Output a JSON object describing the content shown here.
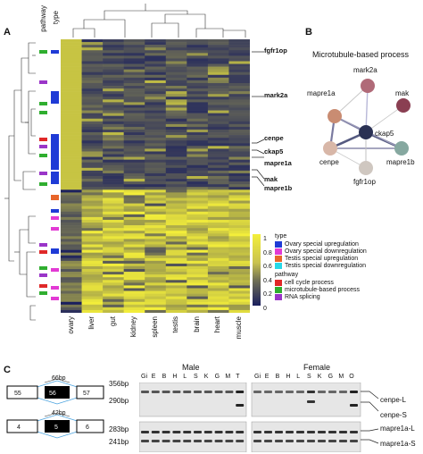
{
  "panels": {
    "a": "A",
    "b": "B",
    "c": "C"
  },
  "heatmap": {
    "side_headers": {
      "type": "type",
      "pathway": "pathway"
    },
    "tissues": [
      "ovary",
      "liver",
      "gut",
      "kidney",
      "spleen",
      "testis",
      "brain",
      "heart",
      "muscle"
    ],
    "gene_labels": [
      "fgfr1op",
      "mark2a",
      "cenpe",
      "ckap5",
      "mapre1a",
      "mak",
      "mapre1b"
    ],
    "colorscale": {
      "ticks": [
        "1",
        "0.8",
        "0.6",
        "0.4",
        "0.2",
        "0"
      ],
      "low": "#1a1f5e",
      "mid": "#6e6e55",
      "high": "#f4ef3a"
    }
  },
  "legend": {
    "type_title": "type",
    "type_items": [
      {
        "label": "Ovary special upregulation",
        "color": "#1f3bd6"
      },
      {
        "label": "Ovary special downregulation",
        "color": "#e23ad4"
      },
      {
        "label": "Testis special upregulation",
        "color": "#e8652a"
      },
      {
        "label": "Testis special downregulation",
        "color": "#27d8e8"
      }
    ],
    "pathway_title": "pathway",
    "pathway_items": [
      {
        "label": "cell cycle process",
        "color": "#e02828"
      },
      {
        "label": "microtubule-based process",
        "color": "#2fae2f"
      },
      {
        "label": "RNA splicing",
        "color": "#9a35c8"
      }
    ]
  },
  "network": {
    "title": "Microtubule-based process",
    "nodes": [
      {
        "name": "mark2a",
        "color": "#b06a78"
      },
      {
        "name": "mapre1a",
        "color": "#c98c72"
      },
      {
        "name": "mak",
        "color": "#8a3f52"
      },
      {
        "name": "ckap5",
        "color": "#2a3154"
      },
      {
        "name": "cenpe",
        "color": "#d8b7a8"
      },
      {
        "name": "mapre1b",
        "color": "#86a8a0"
      },
      {
        "name": "fgfr1op",
        "color": "#cfc7c0"
      }
    ]
  },
  "gel": {
    "male_title": "Male",
    "female_title": "Female",
    "male_lanes": [
      "Gi",
      "E",
      "B",
      "H",
      "L",
      "S",
      "K",
      "G",
      "M",
      "T"
    ],
    "female_lanes": [
      "Gi",
      "E",
      "B",
      "H",
      "L",
      "S",
      "K",
      "G",
      "M",
      "O"
    ],
    "top_bp": [
      "356bp",
      "290bp"
    ],
    "bottom_bp": [
      "283bp",
      "241bp"
    ],
    "top_isoforms": [
      "cenpe-L",
      "cenpe-S"
    ],
    "bottom_isoforms": [
      "mapre1a-L",
      "mapre1a-S"
    ],
    "exon_top": {
      "insert": "66bp",
      "exons": [
        "55",
        "56",
        "57"
      ]
    },
    "exon_bottom": {
      "insert": "42bp",
      "exons": [
        "4",
        "5",
        "6"
      ]
    }
  }
}
